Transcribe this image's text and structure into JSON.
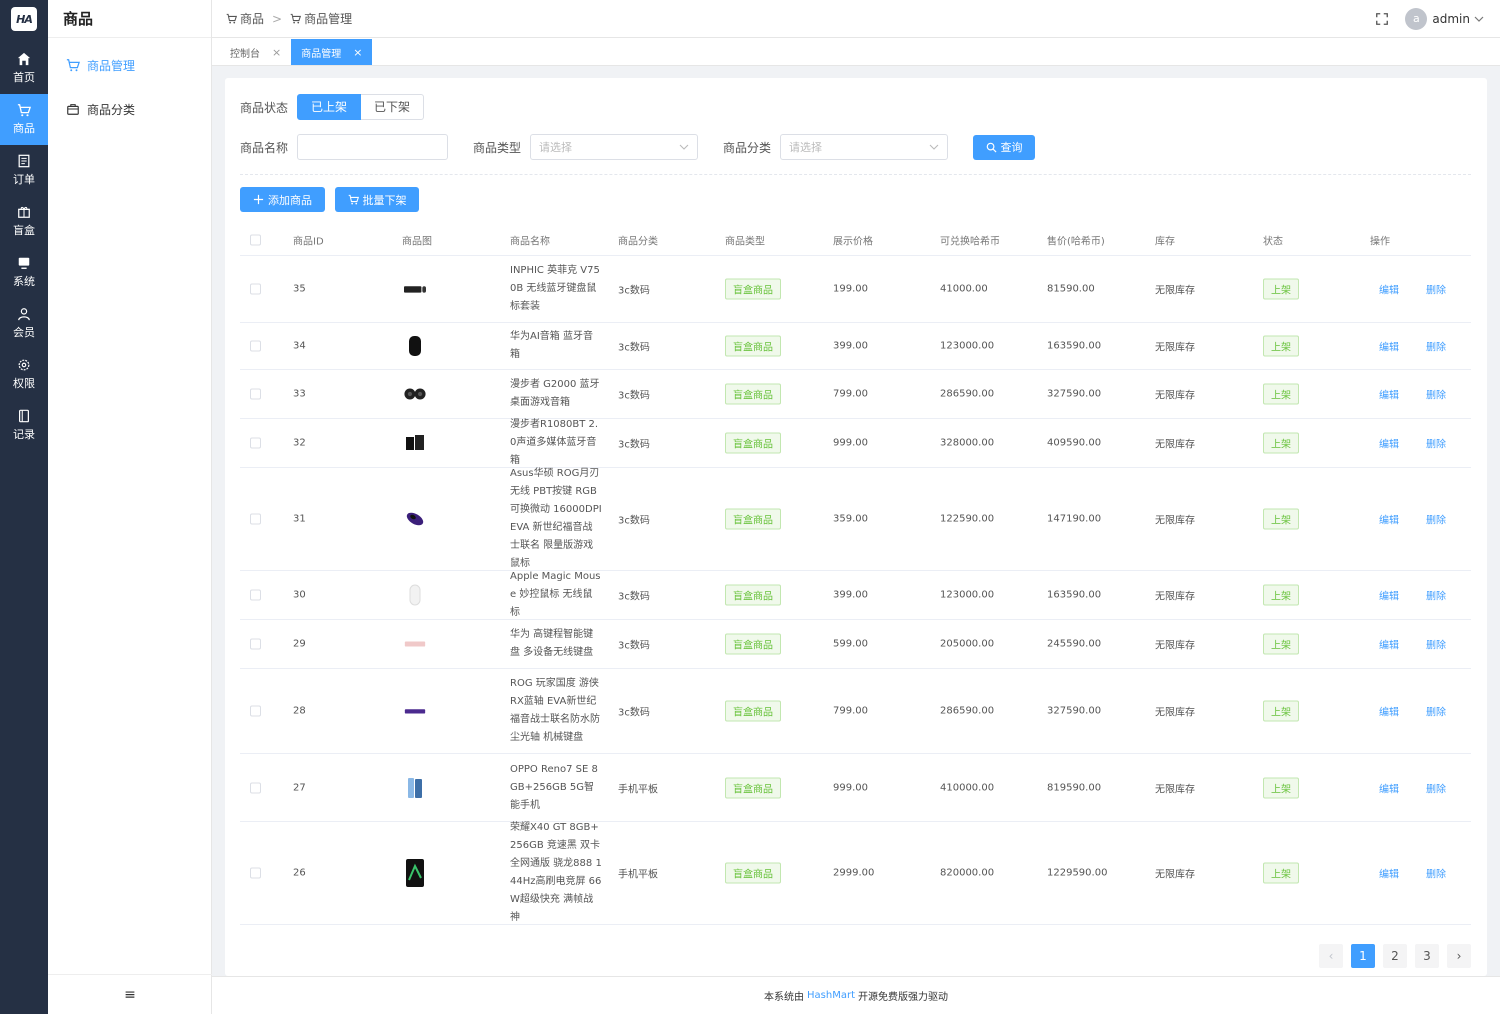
{
  "app": {
    "logo": "HA"
  },
  "rail": [
    {
      "label": "首页",
      "icon": "home-icon"
    },
    {
      "label": "商品",
      "icon": "cart-icon",
      "active": true
    },
    {
      "label": "订单",
      "icon": "order-icon"
    },
    {
      "label": "盲盒",
      "icon": "box-icon"
    },
    {
      "label": "系统",
      "icon": "monitor-icon"
    },
    {
      "label": "会员",
      "icon": "user-icon"
    },
    {
      "label": "权限",
      "icon": "gear-icon"
    },
    {
      "label": "记录",
      "icon": "record-icon"
    }
  ],
  "subnav": {
    "title": "商品",
    "items": [
      {
        "label": "商品管理",
        "icon": "cart-icon",
        "active": true
      },
      {
        "label": "商品分类",
        "icon": "bag-icon"
      }
    ],
    "collapse": "≡"
  },
  "header": {
    "crumbs": [
      "商品",
      "商品管理"
    ],
    "user": "admin",
    "avatar": "a"
  },
  "tabs": [
    {
      "label": "控制台",
      "active": false
    },
    {
      "label": "商品管理",
      "active": true
    }
  ],
  "filters": {
    "status_label": "商品状态",
    "status_on": "已上架",
    "status_off": "已下架",
    "name_label": "商品名称",
    "name_value": "",
    "type_label": "商品类型",
    "type_placeholder": "请选择",
    "cat_label": "商品分类",
    "cat_placeholder": "请选择",
    "query": "查询"
  },
  "actions": {
    "add": "添加商品",
    "batch_off": "批量下架"
  },
  "table": {
    "headers": [
      "商品ID",
      "商品图",
      "商品名称",
      "商品分类",
      "商品类型",
      "展示价格",
      "可兑换哈希币",
      "售价(哈希币)",
      "库存",
      "状态",
      "操作"
    ],
    "edit": "编辑",
    "delete": "删除",
    "rows": [
      {
        "id": "35",
        "img": "keyboard-mouse-thumb",
        "name": "INPHIC 英菲克 V750B 无线蓝牙键盘鼠标套装",
        "cat": "3c数码",
        "type": "盲盒商品",
        "price": "199.00",
        "coin": "41000.00",
        "sale": "81590.00",
        "stock": "无限库存",
        "status": "上架"
      },
      {
        "id": "34",
        "img": "speaker-thumb",
        "name": "华为AI音箱 蓝牙音箱",
        "cat": "3c数码",
        "type": "盲盒商品",
        "price": "399.00",
        "coin": "123000.00",
        "sale": "163590.00",
        "stock": "无限库存",
        "status": "上架"
      },
      {
        "id": "33",
        "img": "speakers-thumb",
        "name": "漫步者 G2000 蓝牙桌面游戏音箱",
        "cat": "3c数码",
        "type": "盲盒商品",
        "price": "799.00",
        "coin": "286590.00",
        "sale": "327590.00",
        "stock": "无限库存",
        "status": "上架"
      },
      {
        "id": "32",
        "img": "speaker-box-thumb",
        "name": "漫步者R1080BT 2.0声道多媒体蓝牙音箱",
        "cat": "3c数码",
        "type": "盲盒商品",
        "price": "999.00",
        "coin": "328000.00",
        "sale": "409590.00",
        "stock": "无限库存",
        "status": "上架"
      },
      {
        "id": "31",
        "img": "mouse-thumb",
        "name": "Asus华硕 ROG月刃无线 PBT按键 RGB可换微动 16000DPI EVA 新世纪福音战士联名 限量版游戏鼠标",
        "cat": "3c数码",
        "type": "盲盒商品",
        "price": "359.00",
        "coin": "122590.00",
        "sale": "147190.00",
        "stock": "无限库存",
        "status": "上架"
      },
      {
        "id": "30",
        "img": "magic-mouse-thumb",
        "name": "Apple Magic Mouse 妙控鼠标 无线鼠标",
        "cat": "3c数码",
        "type": "盲盒商品",
        "price": "399.00",
        "coin": "123000.00",
        "sale": "163590.00",
        "stock": "无限库存",
        "status": "上架"
      },
      {
        "id": "29",
        "img": "keyboard-pink-thumb",
        "name": "华为 高键程智能键盘 多设备无线键盘",
        "cat": "3c数码",
        "type": "盲盒商品",
        "price": "599.00",
        "coin": "205000.00",
        "sale": "245590.00",
        "stock": "无限库存",
        "status": "上架"
      },
      {
        "id": "28",
        "img": "keyboard-purple-thumb",
        "name": "ROG 玩家国度 游侠RX蓝轴 EVA新世纪福音战士联名防水防尘光轴 机械键盘",
        "cat": "3c数码",
        "type": "盲盒商品",
        "price": "799.00",
        "coin": "286590.00",
        "sale": "327590.00",
        "stock": "无限库存",
        "status": "上架"
      },
      {
        "id": "27",
        "img": "phone-blue-thumb",
        "name": "OPPO Reno7 SE 8GB+256GB 5G智能手机",
        "cat": "手机平板",
        "type": "盲盒商品",
        "price": "999.00",
        "coin": "410000.00",
        "sale": "819590.00",
        "stock": "无限库存",
        "status": "上架"
      },
      {
        "id": "26",
        "img": "phone-green-thumb",
        "name": "荣耀X40 GT 8GB+256GB 竞速黑 双卡全网通版 骁龙888 144Hz高刷电竞屏 66W超级快充 满帧战神",
        "cat": "手机平板",
        "type": "盲盒商品",
        "price": "2999.00",
        "coin": "820000.00",
        "sale": "1229590.00",
        "stock": "无限库存",
        "status": "上架"
      }
    ]
  },
  "pagination": {
    "prev": "‹",
    "pages": [
      "1",
      "2",
      "3"
    ],
    "current": "1",
    "next": "›"
  },
  "footer": {
    "pre": "本系统由",
    "brand": "HashMart",
    "post": "开源免费版强力驱动"
  },
  "colors": {
    "rail_bg": "#253044",
    "accent": "#409eff",
    "tag_green": "#67c23a"
  }
}
